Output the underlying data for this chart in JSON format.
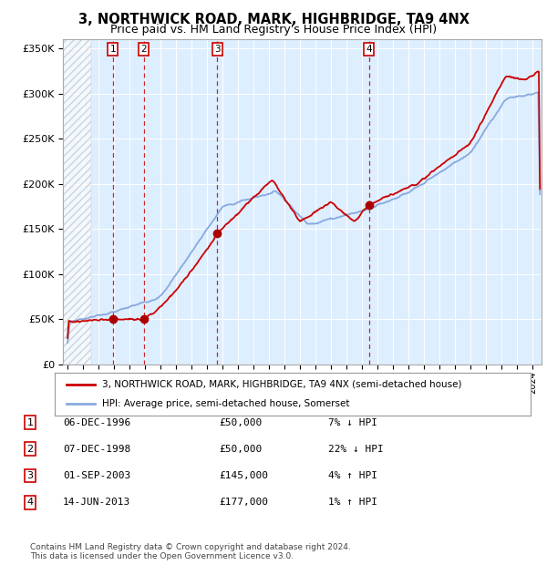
{
  "title": "3, NORTHWICK ROAD, MARK, HIGHBRIDGE, TA9 4NX",
  "subtitle": "Price paid vs. HM Land Registry's House Price Index (HPI)",
  "title_fontsize": 10.5,
  "subtitle_fontsize": 9,
  "background_color": "#ffffff",
  "plot_bg_color": "#ddeeff",
  "hatch_region_end": 1995.5,
  "ylabel_ticks": [
    "£0",
    "£50K",
    "£100K",
    "£150K",
    "£200K",
    "£250K",
    "£300K",
    "£350K"
  ],
  "ytick_values": [
    0,
    50000,
    100000,
    150000,
    200000,
    250000,
    300000,
    350000
  ],
  "ylim": [
    0,
    360000
  ],
  "xlim_start": 1993.7,
  "xlim_end": 2024.6,
  "legend_line1": "3, NORTHWICK ROAD, MARK, HIGHBRIDGE, TA9 4NX (semi-detached house)",
  "legend_line2": "HPI: Average price, semi-detached house, Somerset",
  "sale_markers": [
    {
      "label": "1",
      "year": 1996.92,
      "price": 50000
    },
    {
      "label": "2",
      "year": 1998.92,
      "price": 50000
    },
    {
      "label": "3",
      "year": 2003.67,
      "price": 145000
    },
    {
      "label": "4",
      "year": 2013.45,
      "price": 177000
    }
  ],
  "table_rows": [
    {
      "num": "1",
      "date": "06-DEC-1996",
      "price": "£50,000",
      "hpi": "7% ↓ HPI"
    },
    {
      "num": "2",
      "date": "07-DEC-1998",
      "price": "£50,000",
      "hpi": "22% ↓ HPI"
    },
    {
      "num": "3",
      "date": "01-SEP-2003",
      "price": "£145,000",
      "hpi": "4% ↑ HPI"
    },
    {
      "num": "4",
      "date": "14-JUN-2013",
      "price": "£177,000",
      "hpi": "1% ↑ HPI"
    }
  ],
  "footer": "Contains HM Land Registry data © Crown copyright and database right 2024.\nThis data is licensed under the Open Government Licence v3.0.",
  "red_color": "#cc0000",
  "blue_color": "#88aadd",
  "marker_color": "#aa0000",
  "grid_color": "#ffffff",
  "hatch_color": "#bbbbbb"
}
